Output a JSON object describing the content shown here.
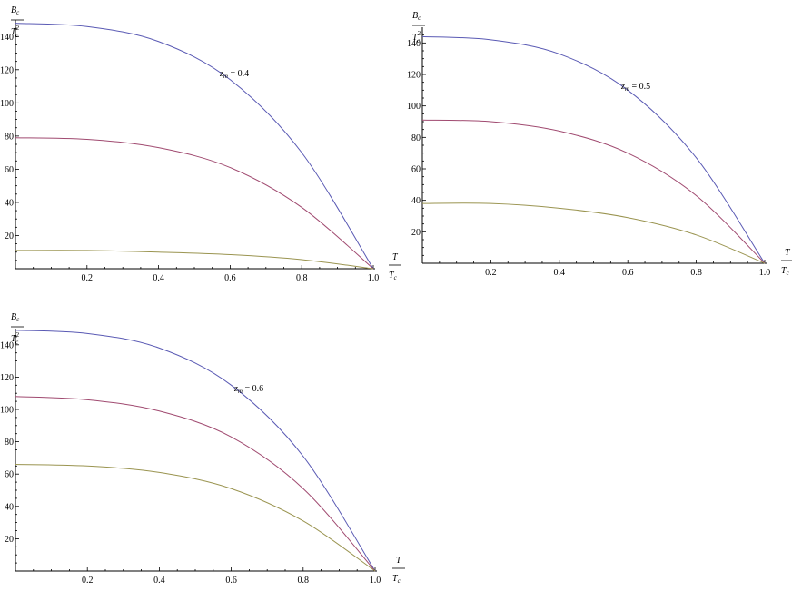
{
  "chart_data": [
    {
      "type": "line",
      "annotation": {
        "var": "z",
        "sub": "m",
        "rest": " = 0.4"
      },
      "ylabel": {
        "num_main": "B",
        "num_sub": "c",
        "den_main": "T",
        "den_sub": "c",
        "den_sup": "2"
      },
      "xlabel": {
        "num_main": "T",
        "den_main": "T",
        "den_sub": "c"
      },
      "xlim": [
        0,
        1.0
      ],
      "ylim": [
        0,
        150
      ],
      "x_ticks": [
        "0.2",
        "0.4",
        "0.6",
        "0.8",
        "1.0"
      ],
      "y_ticks": [
        "20",
        "40",
        "60",
        "80",
        "100",
        "120",
        "140"
      ],
      "series": [
        {
          "color": "#5a5ab4",
          "x": [
            0,
            0.2,
            0.4,
            0.6,
            0.8,
            1.0
          ],
          "values": [
            148,
            146,
            137,
            114,
            70,
            0
          ]
        },
        {
          "color": "#a04a70",
          "x": [
            0,
            0.2,
            0.4,
            0.6,
            0.8,
            1.0
          ],
          "values": [
            79,
            78,
            73,
            61,
            37,
            0
          ]
        },
        {
          "color": "#9a9450",
          "x": [
            0,
            0.2,
            0.4,
            0.6,
            0.8,
            1.0
          ],
          "values": [
            11,
            11,
            10,
            8.5,
            5.5,
            0
          ]
        }
      ]
    },
    {
      "type": "line",
      "annotation": {
        "var": "z",
        "sub": "m",
        "rest": " = 0.5"
      },
      "ylabel": {
        "num_main": "B",
        "num_sub": "c",
        "den_main": "T",
        "den_sub": "c",
        "den_sup": "2"
      },
      "xlabel": {
        "num_main": "T",
        "den_main": "T",
        "den_sub": "c"
      },
      "xlim": [
        0,
        1.0
      ],
      "ylim": [
        0,
        150
      ],
      "x_ticks": [
        "0.2",
        "0.4",
        "0.6",
        "0.8",
        "1.0"
      ],
      "y_ticks": [
        "20",
        "40",
        "60",
        "80",
        "100",
        "120",
        "140"
      ],
      "series": [
        {
          "color": "#5a5ab4",
          "x": [
            0,
            0.2,
            0.4,
            0.6,
            0.8,
            1.0
          ],
          "values": [
            144,
            142,
            133,
            110,
            67,
            0
          ]
        },
        {
          "color": "#a04a70",
          "x": [
            0,
            0.2,
            0.4,
            0.6,
            0.8,
            1.0
          ],
          "values": [
            91,
            90,
            84,
            70,
            43,
            0
          ]
        },
        {
          "color": "#9a9450",
          "x": [
            0,
            0.2,
            0.4,
            0.6,
            0.8,
            1.0
          ],
          "values": [
            38,
            38,
            35,
            29,
            18,
            0
          ]
        }
      ]
    },
    {
      "type": "line",
      "annotation": {
        "var": "z",
        "sub": "m",
        "rest": " = 0.6"
      },
      "ylabel": {
        "num_main": "B",
        "num_sub": "c",
        "den_main": "T",
        "den_sub": "c",
        "den_sup": "2"
      },
      "xlabel": {
        "num_main": "T",
        "den_main": "T",
        "den_sub": "c"
      },
      "xlim": [
        0,
        1.0
      ],
      "ylim": [
        0,
        150
      ],
      "x_ticks": [
        "0.2",
        "0.4",
        "0.6",
        "0.8",
        "1.0"
      ],
      "y_ticks": [
        "20",
        "40",
        "60",
        "80",
        "100",
        "120",
        "140"
      ],
      "series": [
        {
          "color": "#5a5ab4",
          "x": [
            0,
            0.2,
            0.4,
            0.6,
            0.8,
            1.0
          ],
          "values": [
            149,
            147,
            138,
            115,
            71,
            0
          ]
        },
        {
          "color": "#a04a70",
          "x": [
            0,
            0.2,
            0.4,
            0.6,
            0.8,
            1.0
          ],
          "values": [
            108,
            106,
            99,
            83,
            51,
            0
          ]
        },
        {
          "color": "#9a9450",
          "x": [
            0,
            0.2,
            0.4,
            0.6,
            0.8,
            1.0
          ],
          "values": [
            66,
            65,
            61,
            51,
            31,
            0
          ]
        }
      ]
    }
  ]
}
